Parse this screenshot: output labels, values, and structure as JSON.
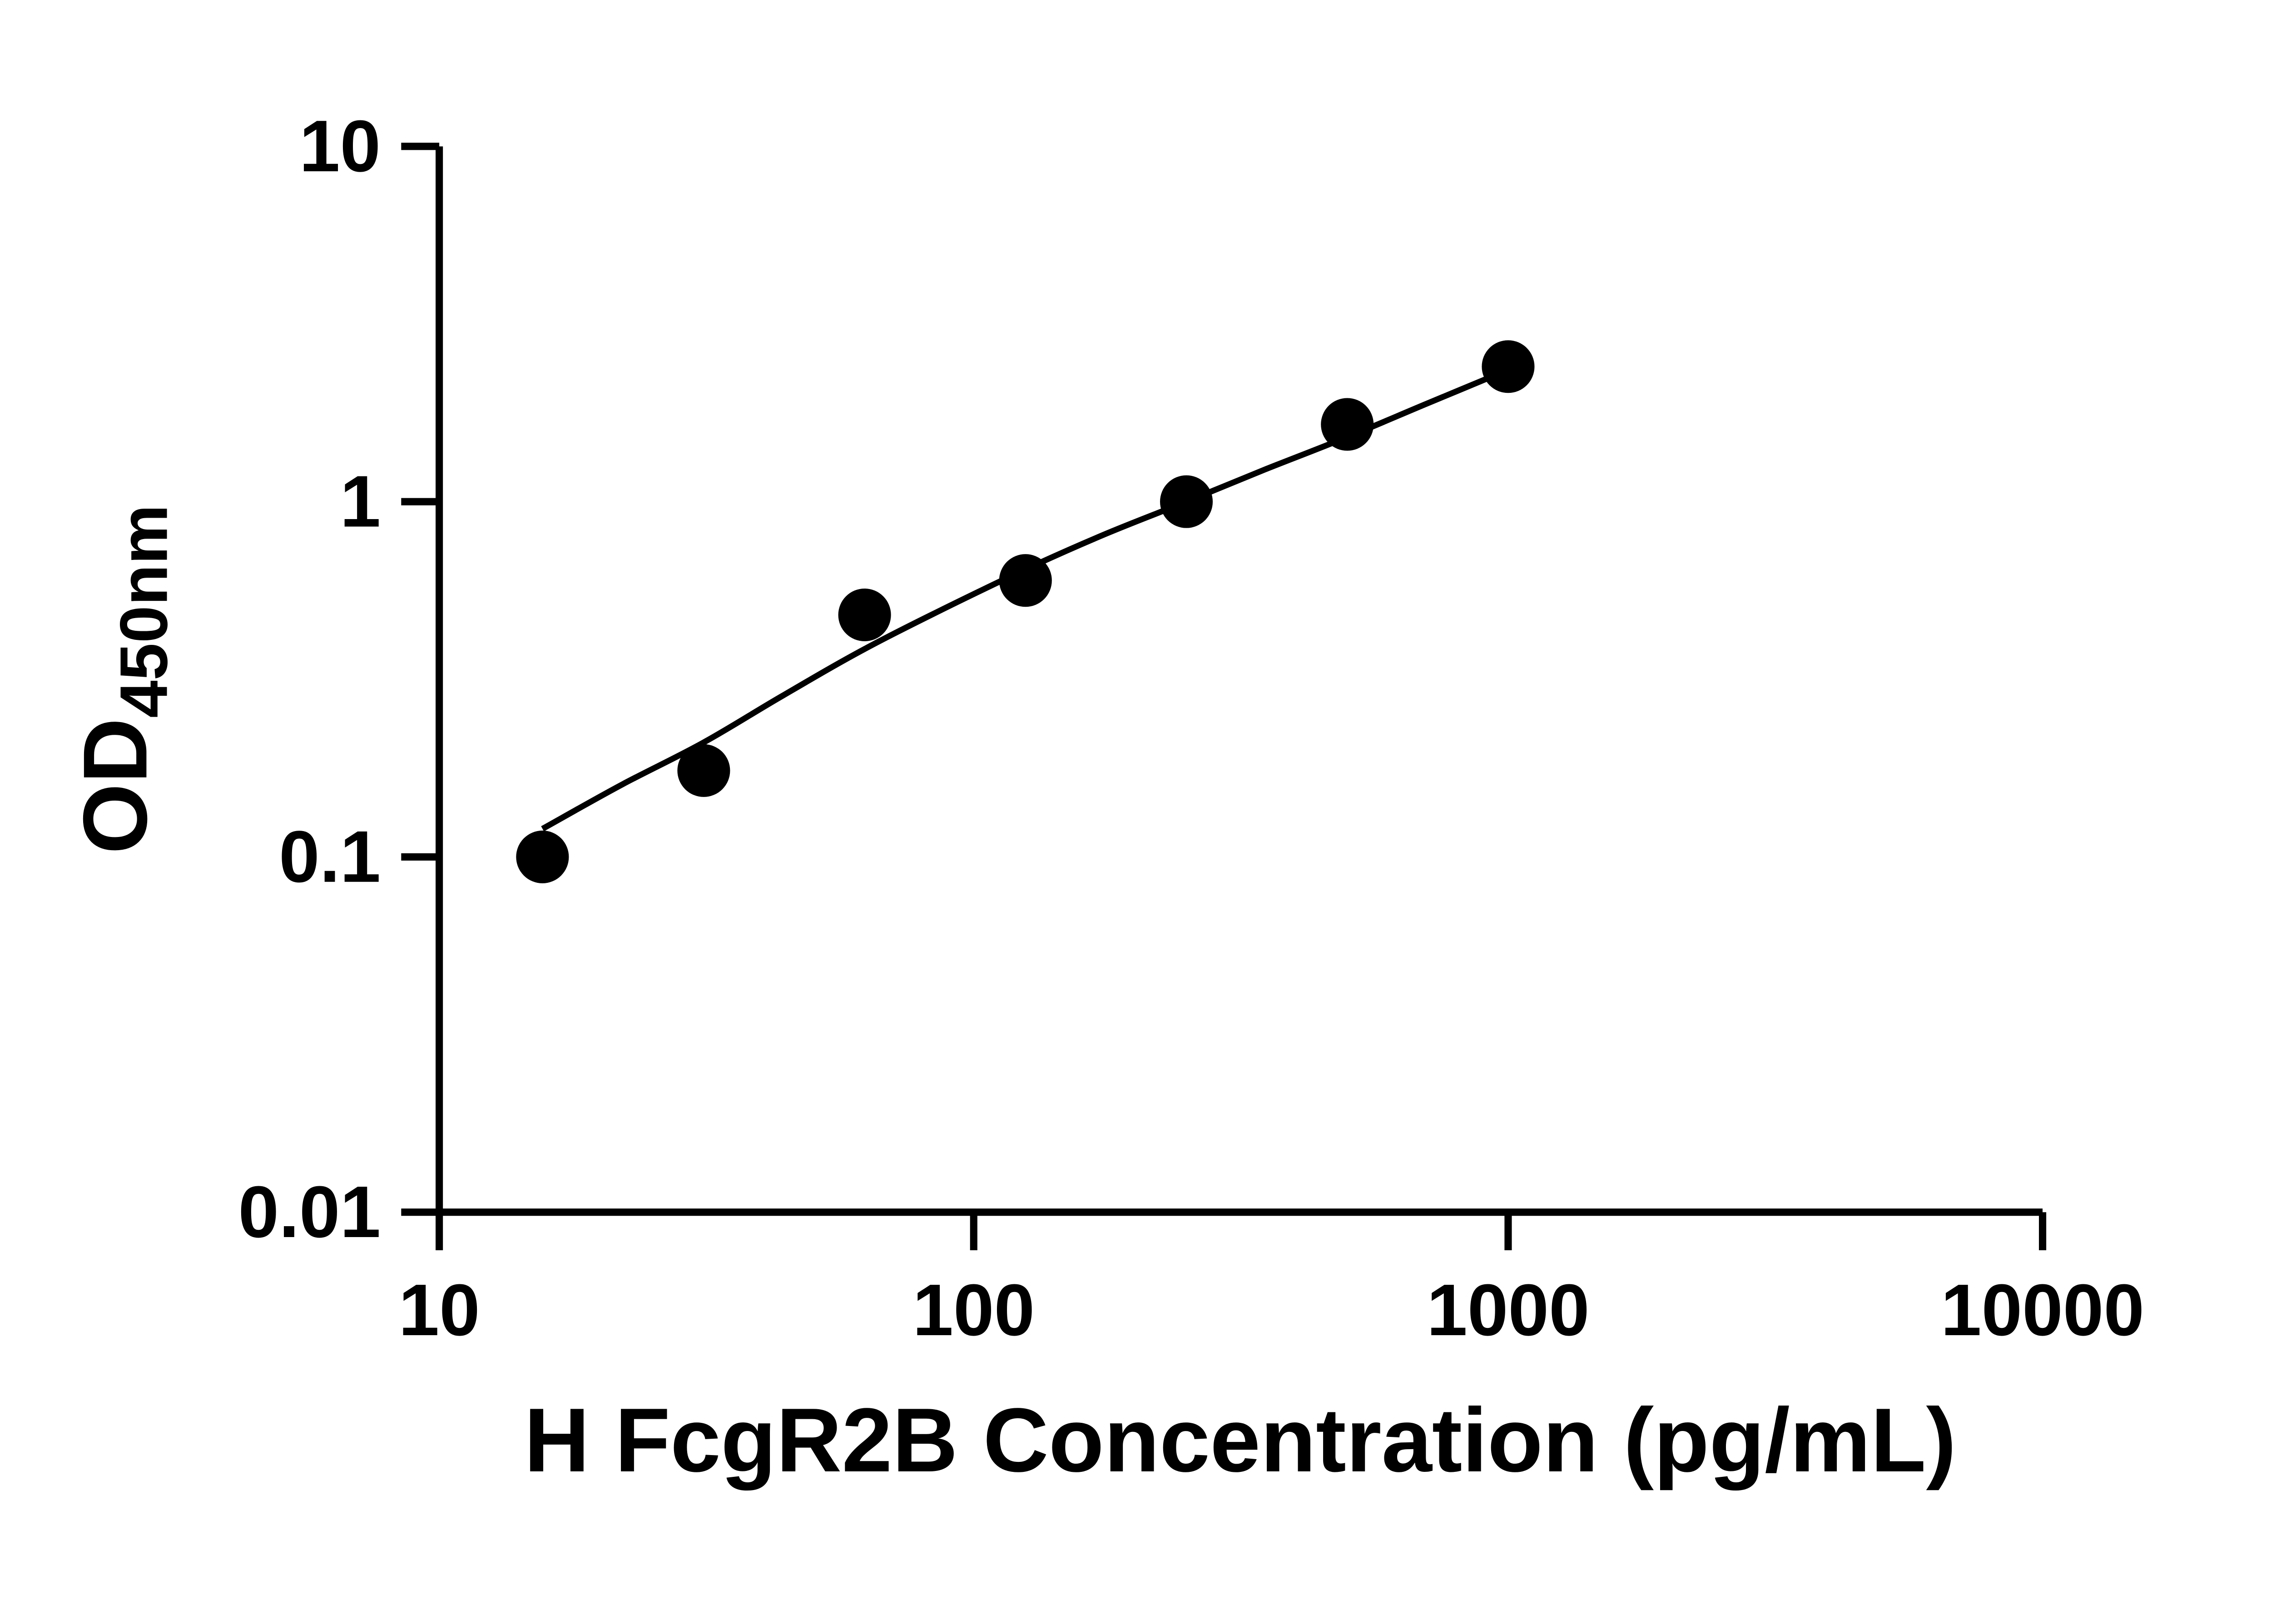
{
  "chart_data": {
    "type": "scatter",
    "title": "",
    "xlabel": "H FcgR2B Concentration (pg/mL)",
    "ylabel_main": "OD",
    "ylabel_sub": "450nm",
    "x_scale": "log",
    "y_scale": "log",
    "xlim": [
      10,
      10000
    ],
    "ylim": [
      0.01,
      10
    ],
    "x_ticks": [
      10,
      100,
      1000,
      10000
    ],
    "x_tick_labels": [
      "10",
      "100",
      "1000",
      "10000"
    ],
    "y_ticks": [
      0.01,
      0.1,
      1,
      10
    ],
    "y_tick_labels": [
      "0.01",
      "0.1",
      "1",
      "10"
    ],
    "grid": false,
    "legend": "none",
    "points": {
      "x": [
        15.6,
        31.25,
        62.5,
        125,
        250,
        500,
        1000
      ],
      "y": [
        0.1,
        0.175,
        0.48,
        0.6,
        1.0,
        1.65,
        2.4
      ]
    },
    "curve": [
      [
        15.6,
        0.12
      ],
      [
        22,
        0.16
      ],
      [
        31.25,
        0.21
      ],
      [
        44,
        0.285
      ],
      [
        62.5,
        0.385
      ],
      [
        88,
        0.5
      ],
      [
        125,
        0.645
      ],
      [
        176,
        0.81
      ],
      [
        250,
        1.0
      ],
      [
        350,
        1.23
      ],
      [
        500,
        1.52
      ],
      [
        700,
        1.88
      ],
      [
        1000,
        2.35
      ]
    ],
    "axis_color": "#000000",
    "curve_color": "#000000",
    "marker_color": "#000000",
    "background_color": "#ffffff"
  }
}
